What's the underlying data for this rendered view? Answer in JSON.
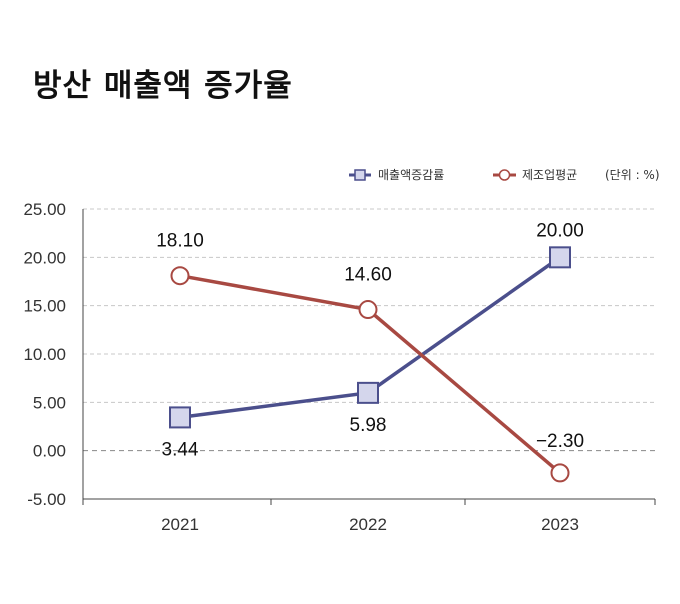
{
  "title": "방산 매출액 증가율",
  "chart_data": {
    "type": "line",
    "title": "방산 매출액 증가율",
    "unit_label": "(단위 : %)",
    "categories": [
      "2021",
      "2022",
      "2023"
    ],
    "ylim": [
      -5,
      25
    ],
    "yticks": [
      "25.00",
      "20.00",
      "15.00",
      "10.00",
      "5.00",
      "0.00",
      "-5.00"
    ],
    "grid": true,
    "legend_position": "top-right",
    "series": [
      {
        "name": "매출액증감률",
        "values": [
          3.44,
          5.98,
          20.0
        ],
        "labels": [
          "3.44",
          "5.98",
          "20.00"
        ],
        "color": "#4b4f8c",
        "marker": "square"
      },
      {
        "name": "제조업평균",
        "values": [
          18.1,
          14.6,
          -2.3
        ],
        "labels": [
          "18.10",
          "14.60",
          "−2.30"
        ],
        "color": "#a84942",
        "marker": "circle"
      }
    ]
  }
}
